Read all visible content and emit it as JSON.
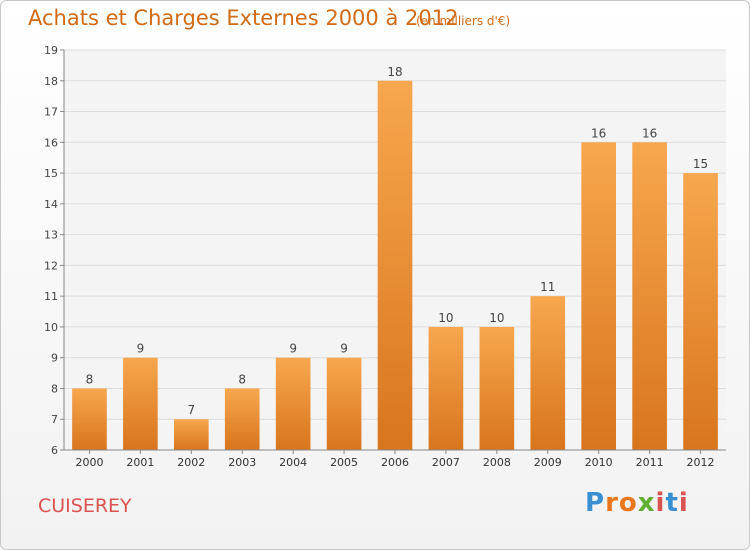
{
  "title": "Achats et Charges Externes 2000 à 2012",
  "subtitle": "(en milliers d'€)",
  "place": "CUISEREY",
  "brand": {
    "letters": [
      "P",
      "r",
      "o",
      "x",
      "i",
      "t",
      "i"
    ],
    "colors": [
      "#3a8fd0",
      "#e8771e",
      "#e8771e",
      "#5fb031",
      "#d9534f",
      "#3a8fd0",
      "#d9534f"
    ]
  },
  "colors": {
    "bar_light": "#f7a74e",
    "bar_dark": "#d8751d",
    "title": "#d26a15",
    "place": "#d9534f"
  },
  "chart_data": {
    "type": "bar",
    "categories": [
      "2000",
      "2001",
      "2002",
      "2003",
      "2004",
      "2005",
      "2006",
      "2007",
      "2008",
      "2009",
      "2010",
      "2011",
      "2012"
    ],
    "values": [
      8,
      9,
      7,
      8,
      9,
      9,
      18,
      10,
      10,
      11,
      16,
      16,
      15
    ],
    "title": "Achats et Charges Externes 2000 à 2012",
    "xlabel": "",
    "ylabel": "",
    "ylim": [
      6,
      19
    ],
    "yticks": [
      6,
      7,
      8,
      9,
      10,
      11,
      12,
      13,
      14,
      15,
      16,
      17,
      18,
      19
    ],
    "grid": true
  }
}
